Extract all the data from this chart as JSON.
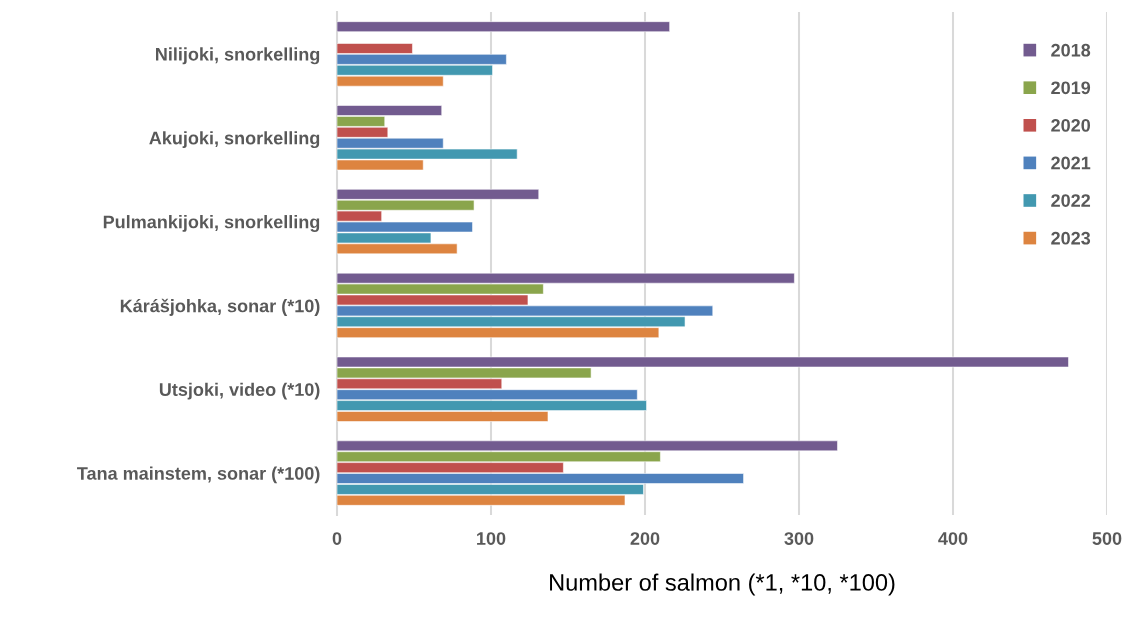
{
  "chart_data": {
    "type": "bar",
    "orientation": "horizontal",
    "xlabel": "Number of salmon (*1, *10, *100)",
    "categories": [
      "Nilijoki, snorkelling",
      "Akujoki, snorkelling",
      "Pulmankijoki, snorkelling",
      "Kárášjohka, sonar (*10)",
      "Utsjoki, video (*10)",
      "Tana mainstem, sonar (*100)"
    ],
    "series": [
      {
        "name": "2018",
        "color": "#725b8f",
        "values": [
          216,
          68,
          131,
          297,
          475,
          325
        ]
      },
      {
        "name": "2019",
        "color": "#8aa54c",
        "values": [
          null,
          31,
          89,
          134,
          165,
          210
        ]
      },
      {
        "name": "2020",
        "color": "#c0504d",
        "values": [
          49,
          33,
          29,
          124,
          107,
          147
        ]
      },
      {
        "name": "2021",
        "color": "#4f81bd",
        "values": [
          110,
          69,
          88,
          244,
          195,
          264
        ]
      },
      {
        "name": "2022",
        "color": "#4298b0",
        "values": [
          101,
          117,
          61,
          226,
          201,
          199
        ]
      },
      {
        "name": "2023",
        "color": "#dd8440",
        "values": [
          69,
          56,
          78,
          209,
          137,
          187
        ]
      }
    ],
    "xlim": [
      0,
      500
    ],
    "xticks": [
      0,
      100,
      200,
      300,
      400,
      500
    ],
    "grid": "x",
    "legend": "top right"
  }
}
